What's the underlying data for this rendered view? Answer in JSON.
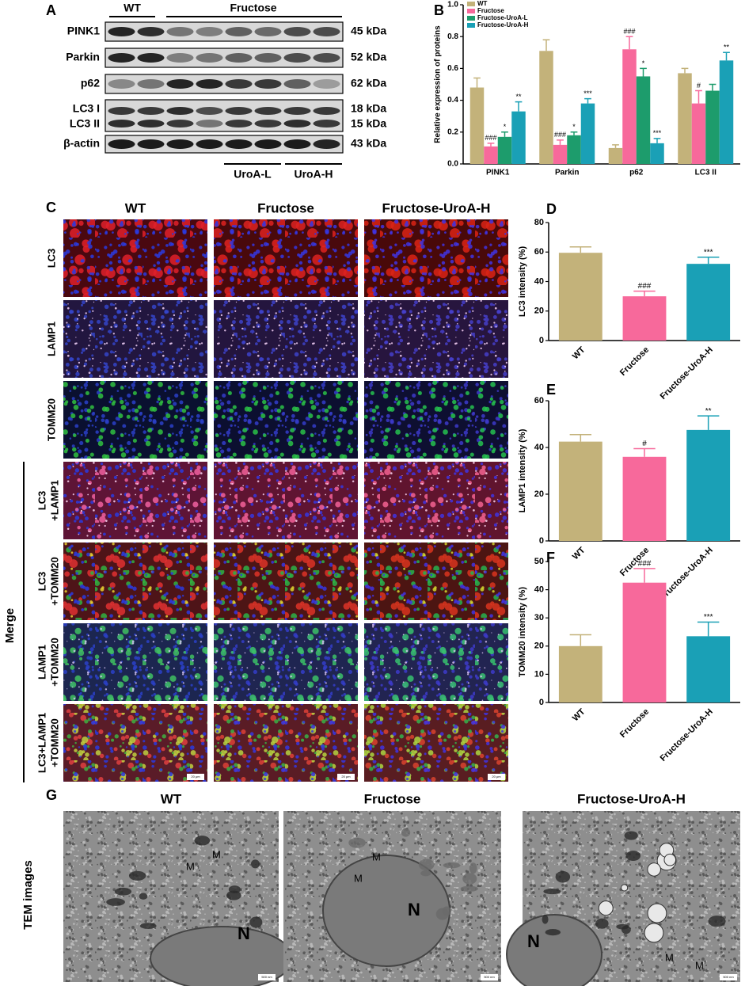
{
  "panels": {
    "labels": [
      "A",
      "B",
      "C",
      "D",
      "E",
      "F",
      "G"
    ],
    "A": {
      "groups": [
        "WT",
        "Fructose"
      ],
      "proteins": [
        "PINK1",
        "Parkin",
        "p62",
        "LC3 I",
        "LC3 II",
        "β-actin"
      ],
      "sizes": [
        "45 kDa",
        "52 kDa",
        "62 kDa",
        "18 kDa",
        "15 kDa",
        "43 kDa"
      ],
      "treatments": [
        "UroA-L",
        "UroA-H"
      ]
    },
    "C": {
      "columns": [
        "WT",
        "Fructose",
        "Fructose-UroA-H"
      ],
      "rows": [
        [
          "LC3"
        ],
        [
          "LAMP1"
        ],
        [
          "TOMM20"
        ],
        [
          "LC3",
          "+LAMP1"
        ],
        [
          "LC3",
          "+TOMM20"
        ],
        [
          "LAMP1",
          "+TOMM20"
        ],
        [
          "LC3+LAMP1",
          "+TOMM20"
        ]
      ],
      "merge": "Merge",
      "scale": "20 μm"
    },
    "G": {
      "columns": [
        "WT",
        "Fructose",
        "Fructose-UroA-H"
      ],
      "side": "TEM images",
      "mito": "M",
      "nucleus": "N",
      "scale": "500 nm"
    }
  },
  "chart_data": [
    {
      "type": "bar",
      "ylabel": "Relative expression of proteins",
      "categories": [
        "PINK1",
        "Parkin",
        "p62",
        "LC3 II"
      ],
      "ylim": [
        0,
        1
      ],
      "yticks": [
        {
          "value": 0,
          "label": "0.0"
        },
        0.2,
        0.4,
        0.6,
        0.8,
        {
          "value": 1,
          "label": "1.0"
        }
      ],
      "legend": "upper left",
      "series": [
        {
          "name": "WT",
          "color": "#c3b27a",
          "values": [
            0.48,
            0.71,
            0.1,
            0.57
          ],
          "errors": [
            0.06,
            0.07,
            0.02,
            0.03
          ],
          "annotations": [
            null,
            null,
            null,
            null
          ]
        },
        {
          "name": "Fructose",
          "color": "#f7699b",
          "values": [
            0.11,
            0.12,
            0.72,
            0.38
          ],
          "errors": [
            0.02,
            0.03,
            0.08,
            0.08
          ],
          "annotations": [
            "###",
            "###",
            "###",
            "#"
          ]
        },
        {
          "name": "Fructose-UroA-L",
          "color": "#1d9c6c",
          "values": [
            0.17,
            0.18,
            0.55,
            0.46
          ],
          "errors": [
            0.03,
            0.02,
            0.05,
            0.04
          ],
          "annotations": [
            "*",
            "*",
            "*",
            null
          ]
        },
        {
          "name": "Fructose-UroA-H",
          "color": "#1aa0b6",
          "values": [
            0.33,
            0.38,
            0.13,
            0.65
          ],
          "errors": [
            0.06,
            0.03,
            0.03,
            0.05
          ],
          "annotations": [
            "**",
            "***",
            "***",
            "**"
          ]
        }
      ]
    },
    {
      "type": "bar",
      "ylabel": "LC3 intensity (%)",
      "categories": [
        "WT",
        "Fructose",
        "Fructose-UroA-H"
      ],
      "colors": [
        "#c3b27a",
        "#f7699b",
        "#1aa0b6"
      ],
      "ylim": [
        0,
        80
      ],
      "yticks": [
        0,
        20,
        40,
        60,
        80
      ],
      "series": [
        {
          "values": [
            59.5,
            30,
            52
          ],
          "errors": [
            4,
            3.5,
            4.5
          ],
          "annotations": [
            null,
            "###",
            "***"
          ]
        }
      ]
    },
    {
      "type": "bar",
      "ylabel": "LAMP1 intensity (%)",
      "categories": [
        "WT",
        "Fructose",
        "Fructose-UroA-H"
      ],
      "colors": [
        "#c3b27a",
        "#f7699b",
        "#1aa0b6"
      ],
      "ylim": [
        0,
        60
      ],
      "yticks": [
        0,
        20,
        40,
        60
      ],
      "series": [
        {
          "values": [
            42.5,
            36,
            47.5
          ],
          "errors": [
            3,
            3.5,
            6
          ],
          "annotations": [
            null,
            "#",
            "**"
          ]
        }
      ]
    },
    {
      "type": "bar",
      "ylabel": "TOMM20 intensity (%)",
      "categories": [
        "WT",
        "Fructose",
        "Fructose-UroA-H"
      ],
      "colors": [
        "#c3b27a",
        "#f7699b",
        "#1aa0b6"
      ],
      "ylim": [
        0,
        50
      ],
      "yticks": [
        0,
        10,
        20,
        30,
        40,
        50
      ],
      "series": [
        {
          "values": [
            20,
            42.5,
            23.5
          ],
          "errors": [
            4,
            5,
            5
          ],
          "annotations": [
            null,
            "###",
            "***"
          ]
        }
      ]
    }
  ]
}
